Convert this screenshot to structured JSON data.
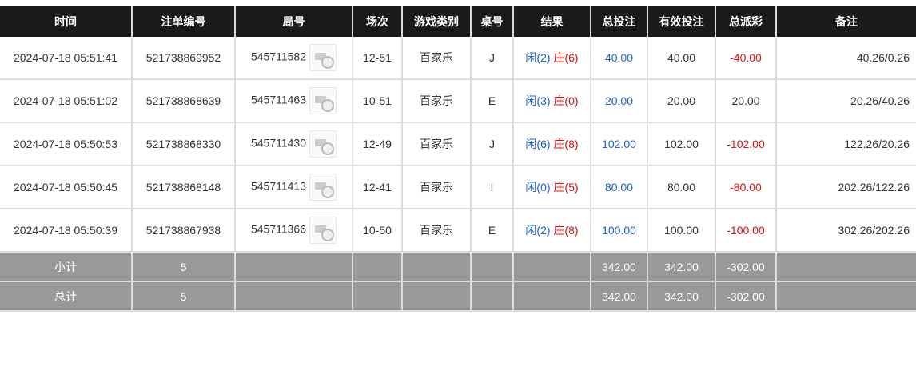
{
  "headers": [
    "时间",
    "注单编号",
    "局号",
    "场次",
    "游戏类别",
    "桌号",
    "结果",
    "总投注",
    "有效投注",
    "总派彩",
    "备注"
  ],
  "rows": [
    {
      "time": "2024-07-18 05:51:41",
      "bet_id": "521738869952",
      "round": "545711582",
      "session": "12-51",
      "game": "百家乐",
      "table": "J",
      "player": "闲(2)",
      "banker": "庄(6)",
      "total_bet": "40.00",
      "valid_bet": "40.00",
      "payout": "-40.00",
      "note": "40.26/0.26"
    },
    {
      "time": "2024-07-18 05:51:02",
      "bet_id": "521738868639",
      "round": "545711463",
      "session": "10-51",
      "game": "百家乐",
      "table": "E",
      "player": "闲(3)",
      "banker": "庄(0)",
      "total_bet": "20.00",
      "valid_bet": "20.00",
      "payout": "20.00",
      "note": "20.26/40.26"
    },
    {
      "time": "2024-07-18 05:50:53",
      "bet_id": "521738868330",
      "round": "545711430",
      "session": "12-49",
      "game": "百家乐",
      "table": "J",
      "player": "闲(6)",
      "banker": "庄(8)",
      "total_bet": "102.00",
      "valid_bet": "102.00",
      "payout": "-102.00",
      "note": "122.26/20.26"
    },
    {
      "time": "2024-07-18 05:50:45",
      "bet_id": "521738868148",
      "round": "545711413",
      "session": "12-41",
      "game": "百家乐",
      "table": "I",
      "player": "闲(0)",
      "banker": "庄(5)",
      "total_bet": "80.00",
      "valid_bet": "80.00",
      "payout": "-80.00",
      "note": "202.26/122.26"
    },
    {
      "time": "2024-07-18 05:50:39",
      "bet_id": "521738867938",
      "round": "545711366",
      "session": "10-50",
      "game": "百家乐",
      "table": "E",
      "player": "闲(2)",
      "banker": "庄(8)",
      "total_bet": "100.00",
      "valid_bet": "100.00",
      "payout": "-100.00",
      "note": "302.26/202.26"
    }
  ],
  "summary": [
    {
      "label": "小计",
      "count": "5",
      "total_bet": "342.00",
      "valid_bet": "342.00",
      "payout": "-302.00"
    },
    {
      "label": "总计",
      "count": "5",
      "total_bet": "342.00",
      "valid_bet": "342.00",
      "payout": "-302.00"
    }
  ],
  "icons": {
    "replay": "video-replay-icon"
  },
  "colors": {
    "blue": "#1e5fd1",
    "red": "#e01010",
    "header_bg": "#1a1a1a",
    "summary_bg": "#999999"
  }
}
